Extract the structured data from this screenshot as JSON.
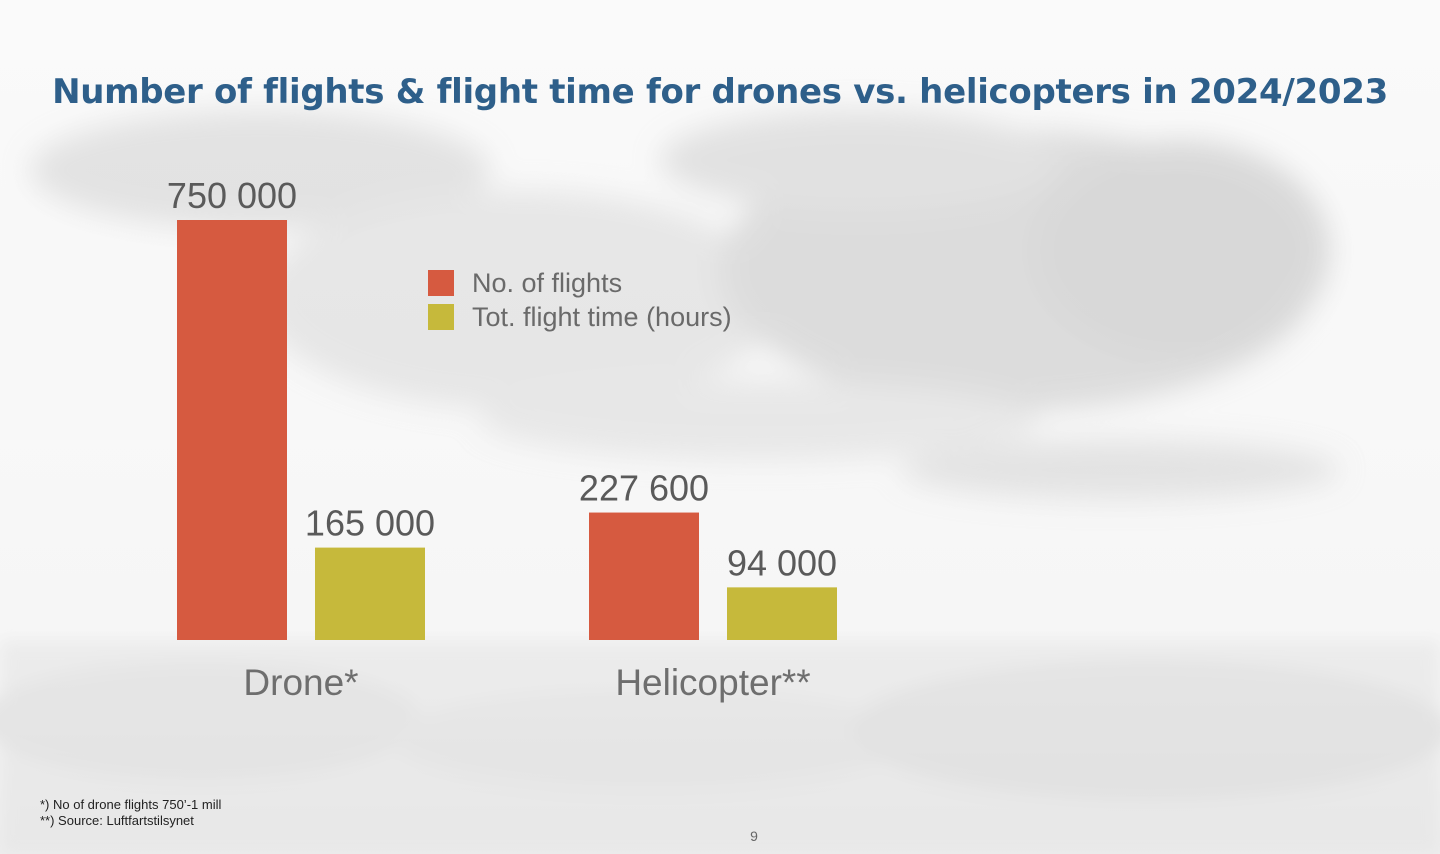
{
  "slide": {
    "title": "Number of flights & flight time for drones vs. helicopters in 2024/2023",
    "footnotes": [
      "*) No of drone flights 750’-1 mill",
      "**) Source: Luftfartstilsynet"
    ],
    "page_number": "9"
  },
  "chart_data": {
    "type": "bar",
    "categories": [
      "Drone*",
      "Helicopter**"
    ],
    "series": [
      {
        "name": "No. of flights",
        "color": "#d65a40",
        "values": [
          750000,
          227600
        ],
        "labels": [
          "750 000",
          "227 600"
        ]
      },
      {
        "name": "Tot. flight time (hours)",
        "color": "#c6b93b",
        "values": [
          165000,
          94000
        ],
        "labels": [
          "165 000",
          "94 000"
        ]
      }
    ],
    "ylim": [
      0,
      750000
    ],
    "grid": false,
    "legend": "top-center"
  }
}
